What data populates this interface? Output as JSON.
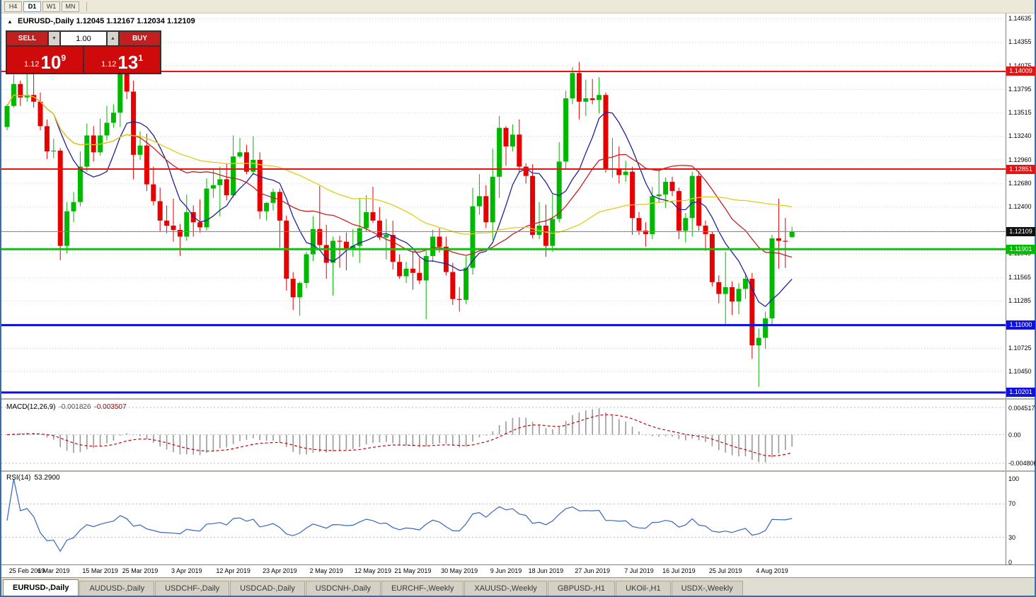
{
  "toolbar": {
    "timeframes": [
      {
        "label": "H4",
        "active": false
      },
      {
        "label": "D1",
        "active": true
      },
      {
        "label": "W1",
        "active": false
      },
      {
        "label": "MN",
        "active": false
      }
    ]
  },
  "chart_header": {
    "collapse_icon": "▲",
    "symbol_label": "EURUSD-,Daily",
    "ohlc_values": "1.12045 1.12167 1.12034 1.12109"
  },
  "trade_panel": {
    "sell_label": "SELL",
    "buy_label": "BUY",
    "volume_value": "1.00",
    "volume_down_icon": "▼",
    "volume_up_icon": "▲",
    "sell_price": {
      "prefix": "1.12",
      "big": "10",
      "sup": "9"
    },
    "buy_price": {
      "prefix": "1.12",
      "big": "13",
      "sup": "1"
    },
    "button_color": "#c41e1e",
    "price_box_color": "#cf0a0a"
  },
  "price_axis": {
    "ticks": [
      "1.14635",
      "1.14355",
      "1.14075",
      "1.13795",
      "1.13515",
      "1.13240",
      "1.12960",
      "1.12680",
      "1.12400",
      "1.11845",
      "1.11565",
      "1.11285",
      "1.10725",
      "1.10450"
    ],
    "grid_prices": [
      1.14635,
      1.14355,
      1.14075,
      1.13795,
      1.13515,
      1.1324,
      1.1296,
      1.1268,
      1.124,
      1.1212,
      1.11845,
      1.11565,
      1.11285,
      1.11005,
      1.10725,
      1.1045
    ],
    "tags": [
      {
        "text": "1.14009",
        "price": 1.14009,
        "bg": "#e21414",
        "fg": "#ffffff"
      },
      {
        "text": "1.12851",
        "price": 1.12851,
        "bg": "#e21414",
        "fg": "#ffffff"
      },
      {
        "text": "1.12109",
        "price": 1.12109,
        "bg": "#111111",
        "fg": "#ffffff"
      },
      {
        "text": "1.11901",
        "price": 1.11901,
        "bg": "#00bb00",
        "fg": "#ffffff"
      },
      {
        "text": "1.11000",
        "price": 1.11,
        "bg": "#1111dd",
        "fg": "#ffffff"
      },
      {
        "text": "1.10201",
        "price": 1.10201,
        "bg": "#1111dd",
        "fg": "#ffffff"
      }
    ]
  },
  "chart_data": {
    "type": "candlestick",
    "symbol": "EURUSD-",
    "timeframe": "Daily",
    "title": "EURUSD-,Daily",
    "price_range": [
      1.1015,
      1.1468
    ],
    "current_price": 1.12109,
    "up_color": "#00b800",
    "down_color": "#e60000",
    "h_lines": [
      {
        "price": 1.14009,
        "color": "#ee1111",
        "w": 2
      },
      {
        "price": 1.12851,
        "color": "#ee1111",
        "w": 2
      },
      {
        "price": 1.11901,
        "color": "#00cc00",
        "w": 3
      },
      {
        "price": 1.11,
        "color": "#0f0fdd",
        "w": 3
      },
      {
        "price": 1.10201,
        "color": "#0f0fdd",
        "w": 3
      }
    ],
    "moving_averages": [
      {
        "period": 8,
        "color": "#20209c"
      },
      {
        "period": 20,
        "color": "#c32222"
      },
      {
        "period": 45,
        "color": "#e0cd1e"
      }
    ],
    "x_labels": [
      {
        "i": 0,
        "t": "25 Feb 2019"
      },
      {
        "i": 7,
        "t": "6 Mar 2019"
      },
      {
        "i": 14,
        "t": "15 Mar 2019"
      },
      {
        "i": 20,
        "t": "25 Mar 2019"
      },
      {
        "i": 27,
        "t": "3 Apr 2019"
      },
      {
        "i": 34,
        "t": "12 Apr 2019"
      },
      {
        "i": 41,
        "t": "23 Apr 2019"
      },
      {
        "i": 48,
        "t": "2 May 2019"
      },
      {
        "i": 55,
        "t": "12 May 2019"
      },
      {
        "i": 61,
        "t": "21 May 2019"
      },
      {
        "i": 68,
        "t": "30 May 2019"
      },
      {
        "i": 75,
        "t": "9 Jun 2019"
      },
      {
        "i": 81,
        "t": "18 Jun 2019"
      },
      {
        "i": 88,
        "t": "27 Jun 2019"
      },
      {
        "i": 95,
        "t": "7 Jul 2019"
      },
      {
        "i": 101,
        "t": "16 Jul 2019"
      },
      {
        "i": 108,
        "t": "25 Jul 2019"
      },
      {
        "i": 115,
        "t": "4 Aug 2019"
      }
    ],
    "candles": [
      [
        1.1335,
        1.1362,
        1.1331,
        1.136
      ],
      [
        1.136,
        1.1397,
        1.1358,
        1.1386
      ],
      [
        1.1386,
        1.139,
        1.136,
        1.137
      ],
      [
        1.137,
        1.1409,
        1.1365,
        1.1373
      ],
      [
        1.1373,
        1.1408,
        1.1358,
        1.1365
      ],
      [
        1.1365,
        1.1376,
        1.1331,
        1.1336
      ],
      [
        1.1336,
        1.1344,
        1.1297,
        1.1306
      ],
      [
        1.1306,
        1.1321,
        1.1298,
        1.1307
      ],
      [
        1.1307,
        1.131,
        1.1177,
        1.1194
      ],
      [
        1.1194,
        1.1246,
        1.1185,
        1.1235
      ],
      [
        1.1235,
        1.1258,
        1.1222,
        1.1246
      ],
      [
        1.1246,
        1.1306,
        1.1241,
        1.1288
      ],
      [
        1.1288,
        1.1339,
        1.1282,
        1.1325
      ],
      [
        1.1325,
        1.1336,
        1.1294,
        1.1305
      ],
      [
        1.1305,
        1.1345,
        1.1301,
        1.1325
      ],
      [
        1.1325,
        1.136,
        1.1319,
        1.134
      ],
      [
        1.134,
        1.1362,
        1.1334,
        1.1352
      ],
      [
        1.1352,
        1.1412,
        1.1335,
        1.1403
      ],
      [
        1.1403,
        1.141,
        1.1368,
        1.1377
      ],
      [
        1.1377,
        1.139,
        1.1273,
        1.1302
      ],
      [
        1.1302,
        1.133,
        1.1296,
        1.1313
      ],
      [
        1.1313,
        1.1327,
        1.1259,
        1.1267
      ],
      [
        1.1267,
        1.1288,
        1.1242,
        1.1247
      ],
      [
        1.1247,
        1.1263,
        1.1211,
        1.1224
      ],
      [
        1.1224,
        1.1242,
        1.1209,
        1.1218
      ],
      [
        1.1218,
        1.125,
        1.1199,
        1.1213
      ],
      [
        1.1213,
        1.122,
        1.1182,
        1.1205
      ],
      [
        1.1205,
        1.1255,
        1.12,
        1.1234
      ],
      [
        1.1234,
        1.1242,
        1.1205,
        1.1222
      ],
      [
        1.1222,
        1.1249,
        1.121,
        1.1216
      ],
      [
        1.1216,
        1.1274,
        1.1212,
        1.1262
      ],
      [
        1.1262,
        1.1285,
        1.1251,
        1.1266
      ],
      [
        1.1266,
        1.1288,
        1.1229,
        1.1273
      ],
      [
        1.1273,
        1.1292,
        1.1248,
        1.1254
      ],
      [
        1.1254,
        1.1325,
        1.1251,
        1.13
      ],
      [
        1.13,
        1.1322,
        1.1298,
        1.1305
      ],
      [
        1.1305,
        1.1314,
        1.1279,
        1.1282
      ],
      [
        1.1282,
        1.1324,
        1.1278,
        1.1296
      ],
      [
        1.1296,
        1.1305,
        1.1226,
        1.1235
      ],
      [
        1.1235,
        1.1246,
        1.1224,
        1.1245
      ],
      [
        1.1245,
        1.1262,
        1.1236,
        1.1258
      ],
      [
        1.1258,
        1.1262,
        1.1192,
        1.1224
      ],
      [
        1.1224,
        1.123,
        1.1141,
        1.1155
      ],
      [
        1.1155,
        1.1163,
        1.1118,
        1.1133
      ],
      [
        1.1133,
        1.1152,
        1.1111,
        1.115
      ],
      [
        1.115,
        1.1187,
        1.1144,
        1.1184
      ],
      [
        1.1184,
        1.1229,
        1.1176,
        1.1214
      ],
      [
        1.1214,
        1.1265,
        1.1188,
        1.1195
      ],
      [
        1.1195,
        1.1219,
        1.1155,
        1.1174
      ],
      [
        1.1174,
        1.1205,
        1.1135,
        1.12
      ],
      [
        1.12,
        1.1206,
        1.1168,
        1.1199
      ],
      [
        1.1199,
        1.121,
        1.1165,
        1.1191
      ],
      [
        1.1191,
        1.1214,
        1.1181,
        1.1194
      ],
      [
        1.1194,
        1.1251,
        1.1174,
        1.1215
      ],
      [
        1.1215,
        1.1254,
        1.1211,
        1.1234
      ],
      [
        1.1234,
        1.1264,
        1.1221,
        1.1224
      ],
      [
        1.1224,
        1.124,
        1.1201,
        1.1204
      ],
      [
        1.1204,
        1.1226,
        1.1178,
        1.1207
      ],
      [
        1.1207,
        1.1224,
        1.1166,
        1.1175
      ],
      [
        1.1175,
        1.1184,
        1.1155,
        1.1158
      ],
      [
        1.1158,
        1.1175,
        1.115,
        1.1167
      ],
      [
        1.1167,
        1.1188,
        1.1142,
        1.1162
      ],
      [
        1.1162,
        1.118,
        1.1149,
        1.1153
      ],
      [
        1.1153,
        1.1188,
        1.1107,
        1.1182
      ],
      [
        1.1182,
        1.1213,
        1.1175,
        1.1205
      ],
      [
        1.1205,
        1.1215,
        1.1186,
        1.1193
      ],
      [
        1.1193,
        1.1205,
        1.1159,
        1.1163
      ],
      [
        1.1163,
        1.1174,
        1.1124,
        1.1131
      ],
      [
        1.1131,
        1.1145,
        1.1116,
        1.113
      ],
      [
        1.113,
        1.1182,
        1.1125,
        1.1168
      ],
      [
        1.1168,
        1.1263,
        1.116,
        1.1241
      ],
      [
        1.1241,
        1.1279,
        1.1231,
        1.1253
      ],
      [
        1.1253,
        1.1266,
        1.1215,
        1.1222
      ],
      [
        1.1222,
        1.1309,
        1.1201,
        1.1276
      ],
      [
        1.1276,
        1.1348,
        1.1251,
        1.1334
      ],
      [
        1.1334,
        1.1336,
        1.1289,
        1.1312
      ],
      [
        1.1312,
        1.1338,
        1.1306,
        1.1326
      ],
      [
        1.1326,
        1.1344,
        1.1281,
        1.1288
      ],
      [
        1.1288,
        1.1292,
        1.1268,
        1.1277
      ],
      [
        1.1277,
        1.1291,
        1.1203,
        1.1207
      ],
      [
        1.1207,
        1.1246,
        1.1202,
        1.1218
      ],
      [
        1.1218,
        1.1243,
        1.1181,
        1.1194
      ],
      [
        1.1194,
        1.1255,
        1.1187,
        1.1226
      ],
      [
        1.1226,
        1.1317,
        1.1222,
        1.1294
      ],
      [
        1.1294,
        1.1378,
        1.1285,
        1.1369
      ],
      [
        1.1369,
        1.1406,
        1.1362,
        1.1399
      ],
      [
        1.1399,
        1.1412,
        1.1344,
        1.1365
      ],
      [
        1.1365,
        1.1391,
        1.1348,
        1.1369
      ],
      [
        1.1369,
        1.1392,
        1.1362,
        1.1367
      ],
      [
        1.1367,
        1.1394,
        1.1351,
        1.1373
      ],
      [
        1.1373,
        1.1376,
        1.1281,
        1.1285
      ],
      [
        1.1285,
        1.1322,
        1.1275,
        1.1285
      ],
      [
        1.1285,
        1.1312,
        1.1268,
        1.1278
      ],
      [
        1.1278,
        1.1295,
        1.127,
        1.1282
      ],
      [
        1.1282,
        1.1288,
        1.1207,
        1.1227
      ],
      [
        1.1227,
        1.1234,
        1.1207,
        1.1212
      ],
      [
        1.1212,
        1.1222,
        1.1193,
        1.1208
      ],
      [
        1.1208,
        1.1264,
        1.1202,
        1.1253
      ],
      [
        1.1253,
        1.1286,
        1.1245,
        1.1255
      ],
      [
        1.1255,
        1.1275,
        1.1239,
        1.127
      ],
      [
        1.127,
        1.1276,
        1.1253,
        1.1259
      ],
      [
        1.1259,
        1.1263,
        1.1202,
        1.1212
      ],
      [
        1.1212,
        1.1233,
        1.1198,
        1.1227
      ],
      [
        1.1227,
        1.1282,
        1.1205,
        1.1277
      ],
      [
        1.1277,
        1.1283,
        1.1212,
        1.1218
      ],
      [
        1.1218,
        1.1224,
        1.1188,
        1.1208
      ],
      [
        1.1208,
        1.1211,
        1.1146,
        1.1151
      ],
      [
        1.1151,
        1.1159,
        1.1126,
        1.1137
      ],
      [
        1.1137,
        1.1187,
        1.1101,
        1.1145
      ],
      [
        1.1145,
        1.1152,
        1.1112,
        1.1128
      ],
      [
        1.1128,
        1.115,
        1.1113,
        1.1143
      ],
      [
        1.1143,
        1.1162,
        1.1131,
        1.1155
      ],
      [
        1.1155,
        1.1162,
        1.106,
        1.1076
      ],
      [
        1.1076,
        1.1096,
        1.1027,
        1.1085
      ],
      [
        1.1085,
        1.1116,
        1.1072,
        1.1108
      ],
      [
        1.1108,
        1.1207,
        1.1101,
        1.1203
      ],
      [
        1.1203,
        1.125,
        1.1167,
        1.12
      ],
      [
        1.12,
        1.1227,
        1.1168,
        1.1199
      ],
      [
        1.12045,
        1.12167,
        1.12034,
        1.12109
      ]
    ]
  },
  "indicators": {
    "macd": {
      "label": "MACD(12,26,9)",
      "value_main": "-0.001826",
      "value_signal": "-0.003507",
      "axis_top": "0.004517",
      "axis_mid": "0.00",
      "axis_bottom": "-0.004806",
      "histogram_color": "#9a9a9a",
      "signal_color": "#cc0000",
      "params": {
        "fast": 12,
        "slow": 26,
        "signal": 9
      }
    },
    "rsi": {
      "label": "RSI(14)",
      "value": "53.2900",
      "axis": [
        "100",
        "70",
        "30",
        "0"
      ],
      "levels": [
        70,
        30
      ],
      "line_color": "#3465c0",
      "period": 14
    }
  },
  "tab_bar": {
    "tabs": [
      {
        "label": "EURUSD-,Daily",
        "active": true
      },
      {
        "label": "AUDUSD-,Daily",
        "active": false
      },
      {
        "label": "USDCHF-,Daily",
        "active": false
      },
      {
        "label": "USDCAD-,Daily",
        "active": false
      },
      {
        "label": "USDCNH-,Daily",
        "active": false
      },
      {
        "label": "EURCHF-,Weekly",
        "active": false
      },
      {
        "label": "XAUUSD-,Weekly",
        "active": false
      },
      {
        "label": "GBPUSD-,H1",
        "active": false
      },
      {
        "label": "UKOil-,H1",
        "active": false
      },
      {
        "label": "USDX-,Weekly",
        "active": false
      }
    ]
  }
}
